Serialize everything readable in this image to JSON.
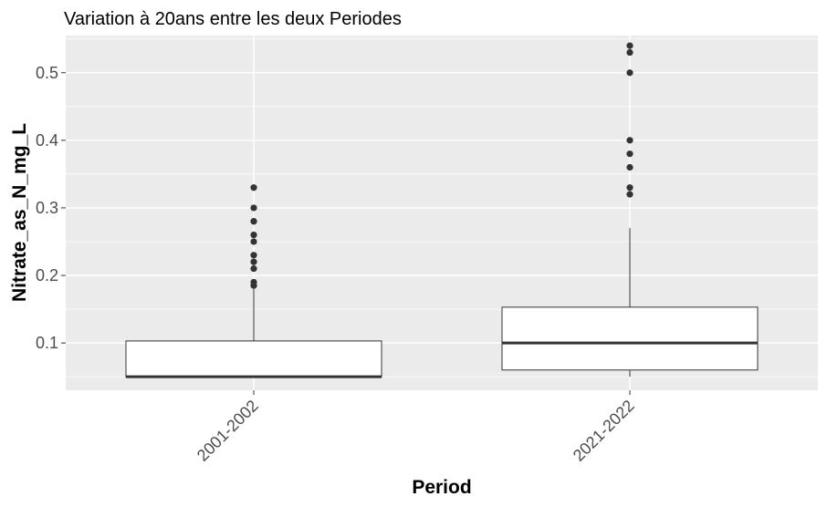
{
  "chart_data": {
    "type": "boxplot",
    "title": "Variation à 20ans entre les deux Periodes",
    "xlabel": "Period",
    "ylabel": "Nitrate_as_N_mg_L",
    "ylim": [
      0.03,
      0.555
    ],
    "yticks": [
      0.1,
      0.2,
      0.3,
      0.4,
      0.5
    ],
    "yticks_labels": [
      "0.1",
      "0.2",
      "0.3",
      "0.4",
      "0.5"
    ],
    "categories": [
      "2001-2002",
      "2021-2022"
    ],
    "boxes": [
      {
        "category": "2001-2002",
        "lower_whisker": 0.05,
        "q1": 0.05,
        "median": 0.05,
        "q3": 0.103,
        "upper_whisker": 0.18,
        "outliers": [
          0.185,
          0.19,
          0.21,
          0.22,
          0.23,
          0.25,
          0.26,
          0.28,
          0.28,
          0.3,
          0.33
        ]
      },
      {
        "category": "2021-2022",
        "lower_whisker": 0.05,
        "q1": 0.06,
        "median": 0.1,
        "q3": 0.153,
        "upper_whisker": 0.27,
        "outliers": [
          0.32,
          0.33,
          0.36,
          0.38,
          0.4,
          0.5,
          0.53,
          0.54
        ]
      }
    ],
    "grid": true,
    "panel_background": "#ebebeb",
    "grid_color": "#ffffff",
    "box_fill": "#ffffff",
    "line_color": "#333333",
    "outlier_color": "#333333"
  }
}
